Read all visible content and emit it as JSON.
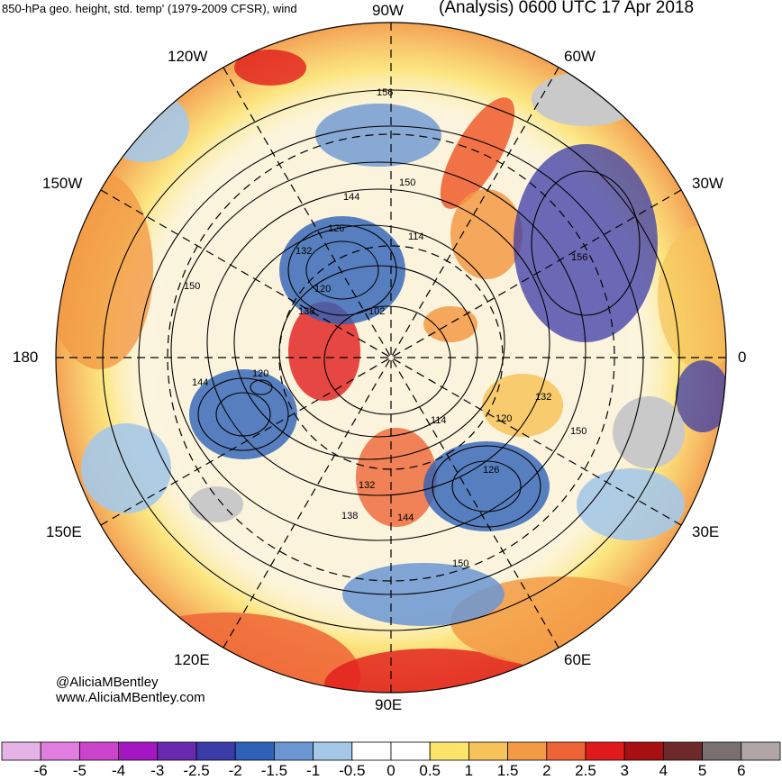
{
  "title": {
    "left": "850-hPa geo. height, std. temp' (1979-2009 CFSR), wind",
    "right": "(Analysis) 0600 UTC 17 Apr 2018"
  },
  "longitude_labels": {
    "w90": "90W",
    "w120": "120W",
    "w60": "60W",
    "w150": "150W",
    "w30": "30W",
    "l180": "180",
    "l0": "0",
    "e150": "150E",
    "e30": "30E",
    "e120": "120E",
    "e60": "60E",
    "e90": "90E"
  },
  "contour_labels": [
    "156",
    "150",
    "144",
    "126",
    "132",
    "120",
    "138",
    "102",
    "114",
    "156",
    "150",
    "120",
    "144",
    "132",
    "120",
    "150",
    "114",
    "132",
    "138",
    "144",
    "126",
    "150"
  ],
  "credit": {
    "handle": "@AliciaMBentley",
    "website": "www.AliciaMBentley.com"
  },
  "colorbar": {
    "ticks": [
      "-6",
      "-5",
      "-4",
      "-3",
      "-2.5",
      "-2",
      "-1.5",
      "-1",
      "-0.5",
      "0",
      "0.5",
      "1",
      "1.5",
      "2",
      "2.5",
      "3",
      "4",
      "5",
      "6"
    ],
    "colors": [
      "#e6b3e6",
      "#e07ee0",
      "#cc44cc",
      "#a316c2",
      "#6a2ab0",
      "#3b3ba8",
      "#2e62b8",
      "#6a96d2",
      "#a6c8e8",
      "#ffffff",
      "#ffffff",
      "#fce36a",
      "#f6c35a",
      "#f39a45",
      "#ef6436",
      "#e11b1b",
      "#a80f10",
      "#6e2a2a",
      "#7a7070",
      "#b0a6a6"
    ]
  }
}
